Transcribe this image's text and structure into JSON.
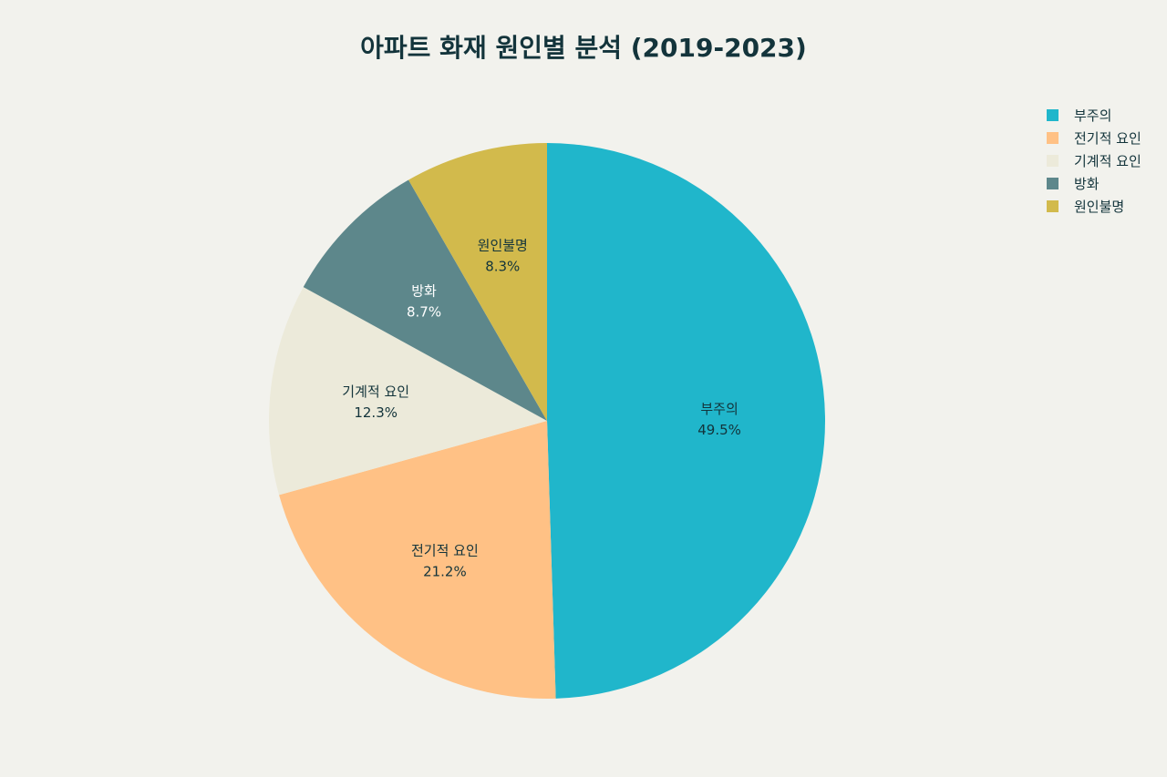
{
  "chart_data": {
    "type": "pie",
    "title": "아파트 화재 원인별 분석 (2019-2023)",
    "categories": [
      "부주의",
      "전기적 요인",
      "기계적 요인",
      "방화",
      "원인불명"
    ],
    "values": [
      49.5,
      21.2,
      12.3,
      8.7,
      8.3
    ],
    "value_labels": [
      "49.5%",
      "21.2%",
      "12.3%",
      "8.7%",
      "8.3%"
    ],
    "colors": [
      "#20b6cb",
      "#ffc185",
      "#eceada",
      "#5d878b",
      "#d2ba4c"
    ],
    "label_colors": [
      "#13343b",
      "#13343b",
      "#13343b",
      "#ffffff",
      "#13343b"
    ],
    "start_angle": "12 o'clock",
    "direction": "clockwise",
    "legend_position": "top-right"
  }
}
